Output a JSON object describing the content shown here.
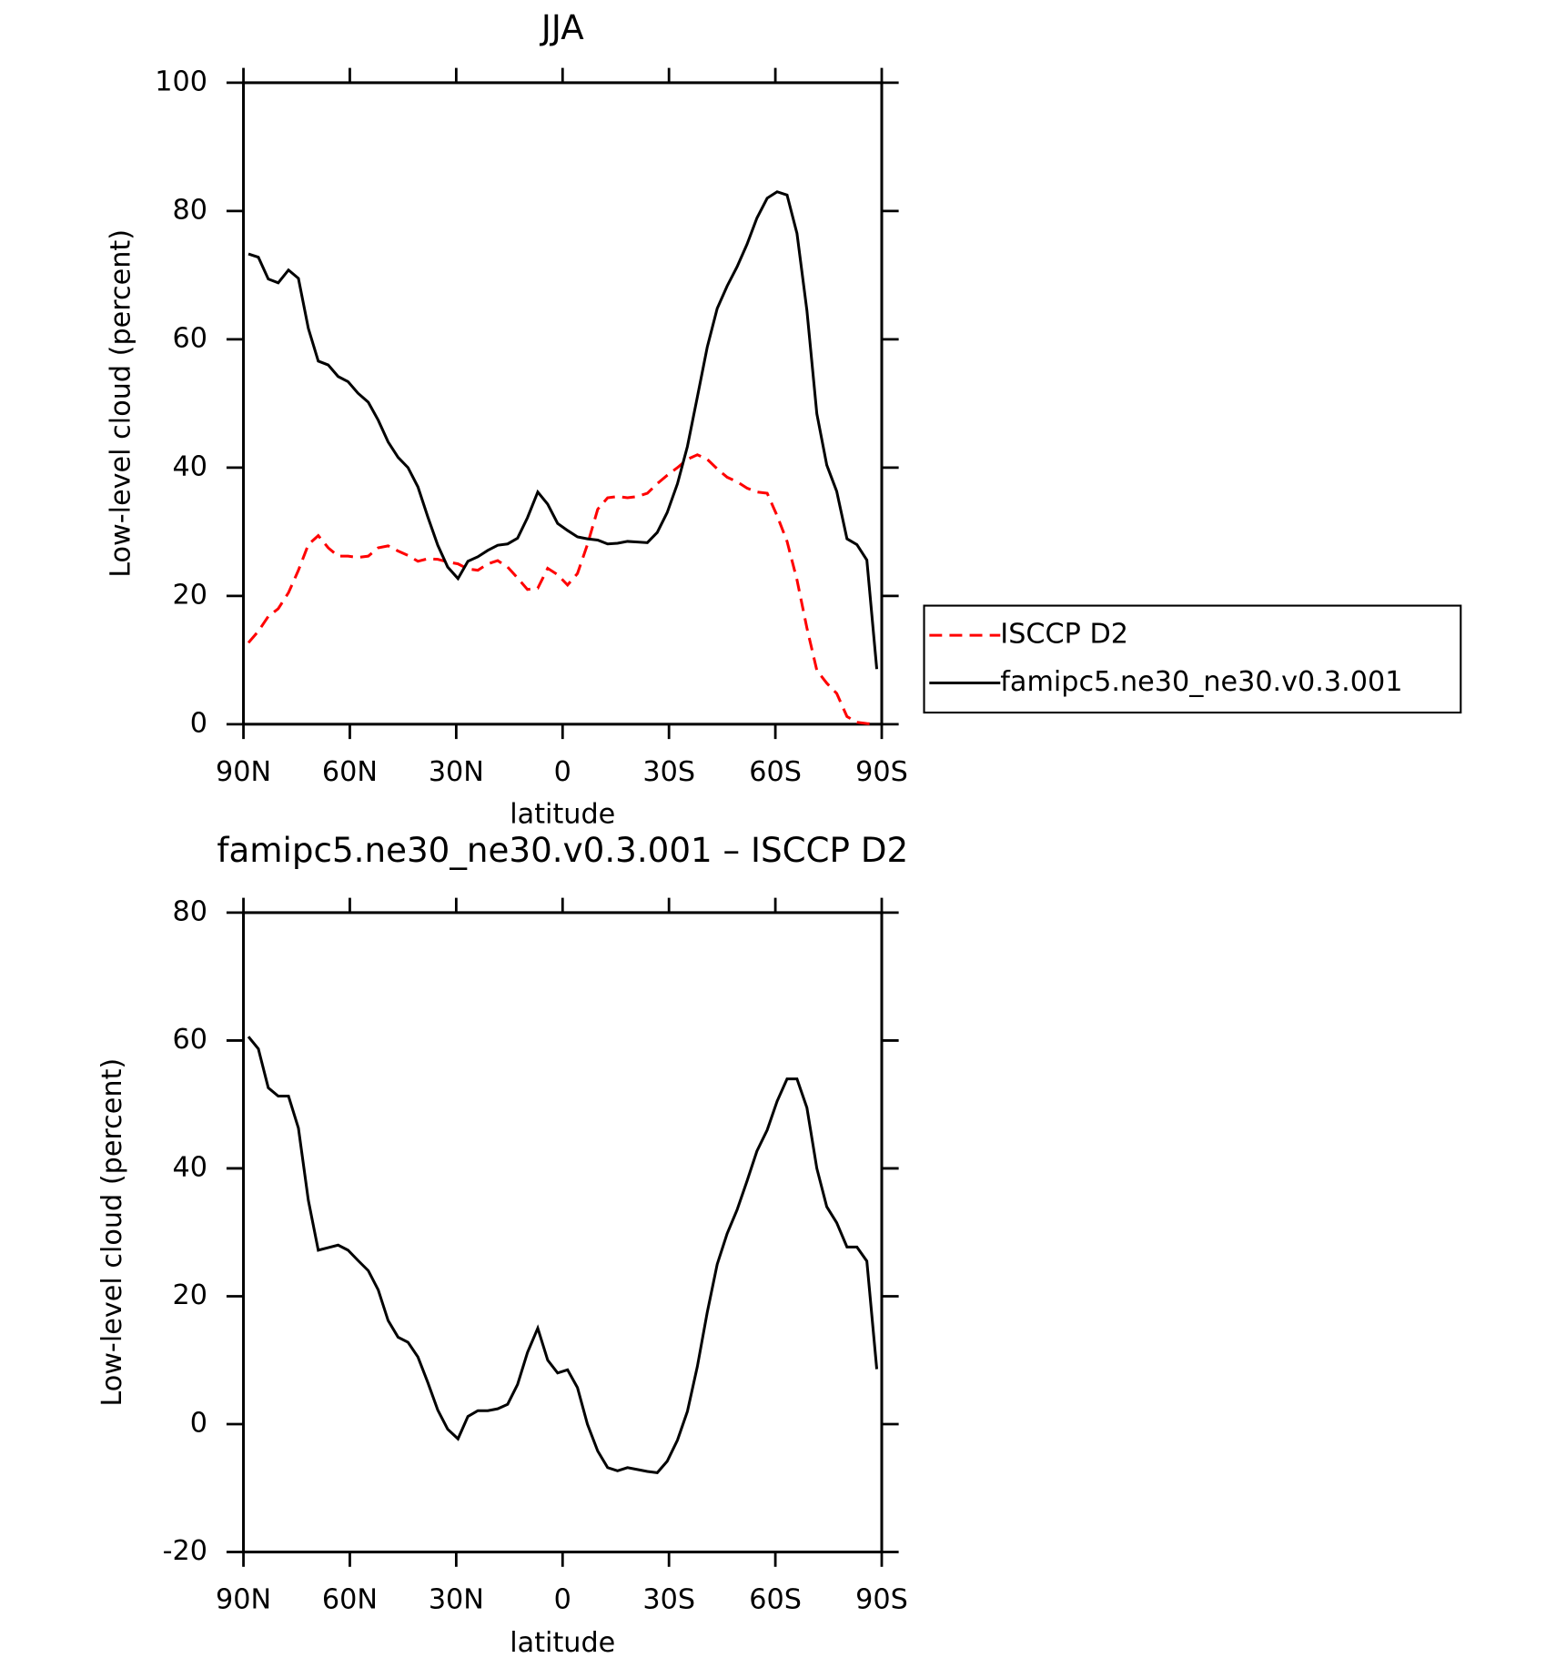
{
  "chart_data": [
    {
      "type": "line",
      "title": "JJA",
      "xlabel": "latitude",
      "ylabel": "Low-level cloud (percent)",
      "x": [
        88.6,
        85.8,
        83.0,
        80.2,
        77.3,
        74.5,
        71.7,
        68.9,
        66.1,
        63.3,
        60.5,
        57.7,
        54.8,
        52.0,
        49.2,
        46.4,
        43.6,
        40.8,
        38.0,
        35.2,
        32.4,
        29.5,
        26.7,
        23.9,
        21.1,
        18.3,
        15.5,
        12.7,
        9.9,
        7.0,
        4.2,
        1.4,
        -1.4,
        -4.2,
        -7.0,
        -9.9,
        -12.7,
        -15.5,
        -18.3,
        -21.1,
        -23.9,
        -26.7,
        -29.5,
        -32.4,
        -35.2,
        -38.0,
        -40.8,
        -43.6,
        -46.4,
        -49.2,
        -52.0,
        -54.8,
        -57.7,
        -60.5,
        -63.3,
        -66.1,
        -68.9,
        -71.7,
        -74.5,
        -77.3,
        -80.2,
        -83.0,
        -85.8,
        -88.6
      ],
      "series": [
        {
          "name": "ISCCP D2",
          "color": "#ff0000",
          "linestyle": "dashed",
          "values": [
            12.7,
            14.5,
            16.8,
            18.0,
            20.5,
            24.0,
            28.0,
            29.4,
            27.5,
            26.2,
            26.2,
            26.0,
            26.2,
            27.5,
            27.8,
            27.0,
            26.3,
            25.4,
            25.8,
            25.7,
            25.3,
            25.0,
            24.2,
            24.0,
            25.0,
            25.5,
            24.5,
            22.8,
            21.0,
            21.2,
            24.3,
            23.3,
            21.7,
            23.5,
            28.0,
            33.5,
            35.3,
            35.5,
            35.3,
            35.5,
            36.0,
            37.5,
            38.8,
            40.0,
            41.3,
            42.0,
            41.3,
            39.8,
            38.5,
            37.8,
            36.8,
            36.2,
            36.0,
            32.5,
            28.5,
            22.5,
            15.0,
            8.4,
            6.4,
            4.8,
            1.2,
            0.3,
            0.1,
            0
          ]
        },
        {
          "name": "famipc5.ne30_ne30.v0.3.001",
          "color": "#000000",
          "linestyle": "solid",
          "values": [
            73.3,
            72.8,
            69.4,
            68.8,
            70.8,
            69.5,
            61.7,
            56.6,
            56.0,
            54.2,
            53.4,
            51.6,
            50.2,
            47.4,
            44.0,
            41.6,
            40.0,
            37.0,
            32.3,
            27.9,
            24.5,
            22.7,
            25.4,
            26.1,
            27.1,
            27.9,
            28.1,
            29.0,
            32.2,
            36.2,
            34.3,
            31.3,
            30.2,
            29.2,
            28.9,
            28.7,
            28.1,
            28.2,
            28.5,
            28.4,
            28.3,
            29.9,
            33.0,
            37.5,
            43.3,
            51.0,
            58.8,
            64.8,
            68.3,
            71.3,
            74.8,
            78.9,
            82.0,
            83.0,
            82.5,
            76.5,
            64.5,
            48.4,
            40.4,
            36.3,
            28.9,
            28.0,
            25.6,
            8.6
          ]
        }
      ],
      "xlim": [
        90,
        -90
      ],
      "xticks": [
        {
          "value": 90,
          "label": "90N"
        },
        {
          "value": 60,
          "label": "60N"
        },
        {
          "value": 30,
          "label": "30N"
        },
        0,
        {
          "value": -30,
          "label": "30S"
        },
        {
          "value": -60,
          "label": "60S"
        },
        {
          "value": -90,
          "label": "90S"
        }
      ],
      "ylim": [
        0,
        100
      ],
      "yticks": [
        0,
        20,
        40,
        60,
        80,
        100
      ],
      "legend": "outside-right"
    },
    {
      "type": "line",
      "title": "famipc5.ne30_ne30.v0.3.001 – ISCCP D2",
      "xlabel": "latitude",
      "ylabel": "Low-level cloud (percent)",
      "x": [
        88.6,
        85.8,
        83.0,
        80.2,
        77.3,
        74.5,
        71.7,
        68.9,
        66.1,
        63.3,
        60.5,
        57.7,
        54.8,
        52.0,
        49.2,
        46.4,
        43.6,
        40.8,
        38.0,
        35.2,
        32.4,
        29.5,
        26.7,
        23.9,
        21.1,
        18.3,
        15.5,
        12.7,
        9.9,
        7.0,
        4.2,
        1.4,
        -1.4,
        -4.2,
        -7.0,
        -9.9,
        -12.7,
        -15.5,
        -18.3,
        -21.1,
        -23.9,
        -26.7,
        -29.5,
        -32.4,
        -35.2,
        -38.0,
        -40.8,
        -43.6,
        -46.4,
        -49.2,
        -52.0,
        -54.8,
        -57.7,
        -60.5,
        -63.3,
        -66.1,
        -68.9,
        -71.7,
        -74.5,
        -77.3,
        -80.2,
        -83.0,
        -85.8,
        -88.6
      ],
      "series": [
        {
          "color": "#000000",
          "linestyle": "solid",
          "values": [
            60.6,
            58.7,
            52.6,
            51.3,
            51.3,
            46.3,
            35.0,
            27.2,
            27.6,
            28.0,
            27.2,
            25.6,
            24.0,
            21.0,
            16.2,
            13.6,
            12.8,
            10.5,
            6.5,
            2.2,
            -0.8,
            -2.3,
            1.2,
            2.1,
            2.1,
            2.4,
            3.1,
            6.2,
            11.2,
            15.0,
            10.0,
            8.0,
            8.5,
            5.7,
            0,
            -4.2,
            -6.8,
            -7.3,
            -6.8,
            -7.1,
            -7.4,
            -7.6,
            -5.8,
            -2.5,
            2.0,
            9.0,
            17.5,
            25.0,
            29.8,
            33.5,
            38.0,
            42.7,
            46.0,
            50.5,
            54.0,
            54.0,
            49.5,
            40.0,
            34.0,
            31.5,
            27.7,
            27.7,
            25.5,
            8.6
          ]
        }
      ],
      "xlim": [
        90,
        -90
      ],
      "xticks": [
        {
          "value": 90,
          "label": "90N"
        },
        {
          "value": 60,
          "label": "60N"
        },
        {
          "value": 30,
          "label": "30N"
        },
        0,
        {
          "value": -30,
          "label": "30S"
        },
        {
          "value": -60,
          "label": "60S"
        },
        {
          "value": -90,
          "label": "90S"
        }
      ],
      "ylim": [
        -20,
        80
      ],
      "yticks": [
        -20,
        0,
        20,
        40,
        60,
        80
      ]
    }
  ]
}
